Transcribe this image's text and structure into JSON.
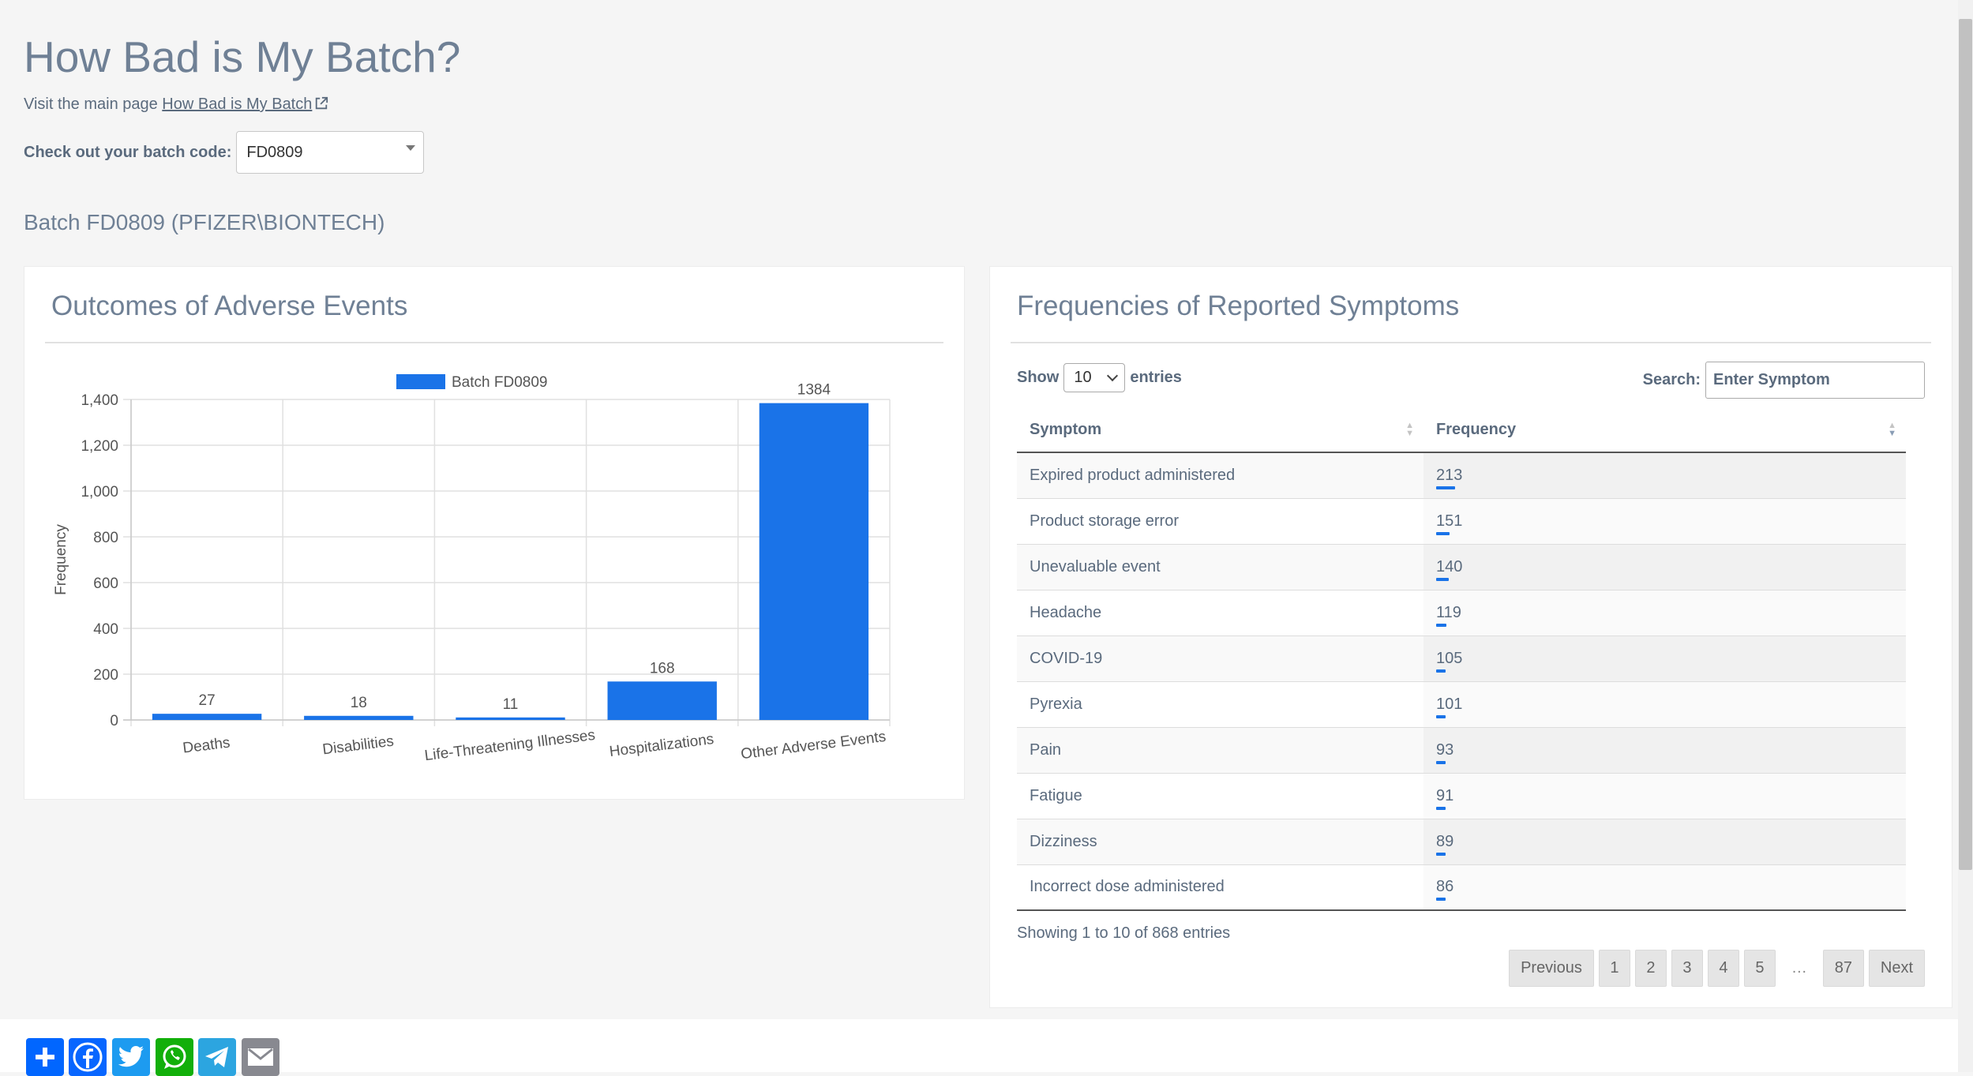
{
  "page": {
    "title": "How Bad is My Batch?",
    "visit_text": "Visit the main page ",
    "visit_link": "How Bad is My Batch",
    "batch_label": "Check out your batch code:",
    "batch_value": "FD0809",
    "batch_heading": "Batch FD0809 (PFIZER\\BIONTECH)"
  },
  "outcomes": {
    "title": "Outcomes of Adverse Events"
  },
  "chart_data": {
    "type": "bar",
    "title": "",
    "legend": "top",
    "categories": [
      "Deaths",
      "Disabilities",
      "Life-Threatening Illnesses",
      "Hospitalizations",
      "Other Adverse Events"
    ],
    "series": [
      {
        "name": "Batch FD0809",
        "values": [
          27,
          18,
          11,
          168,
          1384
        ]
      }
    ],
    "xlabel": "",
    "ylabel": "Frequency",
    "ylim": [
      0,
      1400
    ],
    "yticks": [
      0,
      200,
      400,
      600,
      800,
      1000,
      1200,
      1400
    ],
    "ytick_labels": [
      "0",
      "200",
      "400",
      "600",
      "800",
      "1,000",
      "1,200",
      "1,400"
    ],
    "grid": true,
    "color": "#1a73e8"
  },
  "symptoms": {
    "title": "Frequencies of Reported Symptoms",
    "show_label": "Show",
    "entries_label": "entries",
    "length_value": "10",
    "search_label": "Search:",
    "search_value": "Enter Symptom",
    "col_symptom": "Symptom",
    "col_frequency": "Frequency",
    "rows": [
      {
        "symptom": "Expired product administered",
        "frequency": "213"
      },
      {
        "symptom": "Product storage error",
        "frequency": "151"
      },
      {
        "symptom": "Unevaluable event",
        "frequency": "140"
      },
      {
        "symptom": "Headache",
        "frequency": "119"
      },
      {
        "symptom": "COVID-19",
        "frequency": "105"
      },
      {
        "symptom": "Pyrexia",
        "frequency": "101"
      },
      {
        "symptom": "Pain",
        "frequency": "93"
      },
      {
        "symptom": "Fatigue",
        "frequency": "91"
      },
      {
        "symptom": "Dizziness",
        "frequency": "89"
      },
      {
        "symptom": "Incorrect dose administered",
        "frequency": "86"
      }
    ],
    "info": "Showing 1 to 10 of 868 entries",
    "paging": {
      "previous": "Previous",
      "pages": [
        "1",
        "2",
        "3",
        "4",
        "5"
      ],
      "ellipsis": "…",
      "last": "87",
      "next": "Next"
    }
  },
  "share": {
    "icons": [
      "add-to-any-icon",
      "facebook-icon",
      "twitter-icon",
      "whatsapp-icon",
      "telegram-icon",
      "email-icon"
    ],
    "colors": [
      "#0166ff",
      "#0866ff",
      "#1d9bf0",
      "#12af0a",
      "#2ca5e0",
      "#888990"
    ]
  }
}
